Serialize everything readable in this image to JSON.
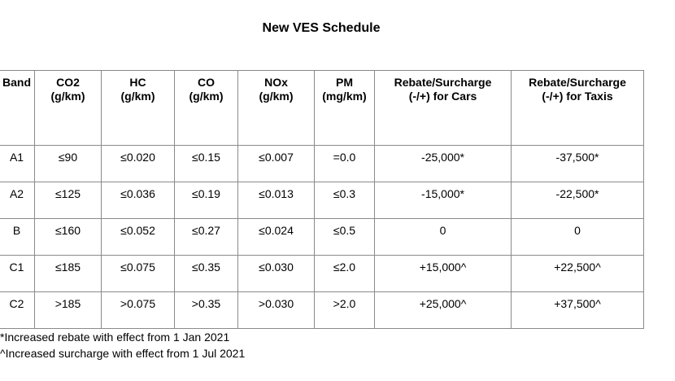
{
  "title": "New VES Schedule",
  "table": {
    "headers": [
      [
        "Band",
        ""
      ],
      [
        "CO2",
        "(g/km)"
      ],
      [
        "HC",
        "(g/km)"
      ],
      [
        "CO",
        "(g/km)"
      ],
      [
        "NOx",
        "(g/km)"
      ],
      [
        "PM",
        "(mg/km)"
      ],
      [
        "Rebate/Surcharge",
        "(-/+) for Cars"
      ],
      [
        "Rebate/Surcharge",
        "(-/+) for Taxis"
      ]
    ],
    "rows": [
      [
        "A1",
        "≤90",
        "≤0.020",
        "≤0.15",
        "≤0.007",
        "=0.0",
        "-25,000*",
        "-37,500*"
      ],
      [
        "A2",
        "≤125",
        "≤0.036",
        "≤0.19",
        "≤0.013",
        "≤0.3",
        "-15,000*",
        "-22,500*"
      ],
      [
        "B",
        "≤160",
        "≤0.052",
        "≤0.27",
        "≤0.024",
        "≤0.5",
        "0",
        "0"
      ],
      [
        "C1",
        "≤185",
        "≤0.075",
        "≤0.35",
        "≤0.030",
        "≤2.0",
        "+15,000^",
        "+22,500^"
      ],
      [
        "C2",
        ">185",
        ">0.075",
        ">0.35",
        ">0.030",
        ">2.0",
        "+25,000^",
        "+37,500^"
      ]
    ]
  },
  "footnotes": [
    "*Increased rebate with effect from 1 Jan 2021",
    "^Increased surcharge with effect from 1 Jul 2021"
  ]
}
